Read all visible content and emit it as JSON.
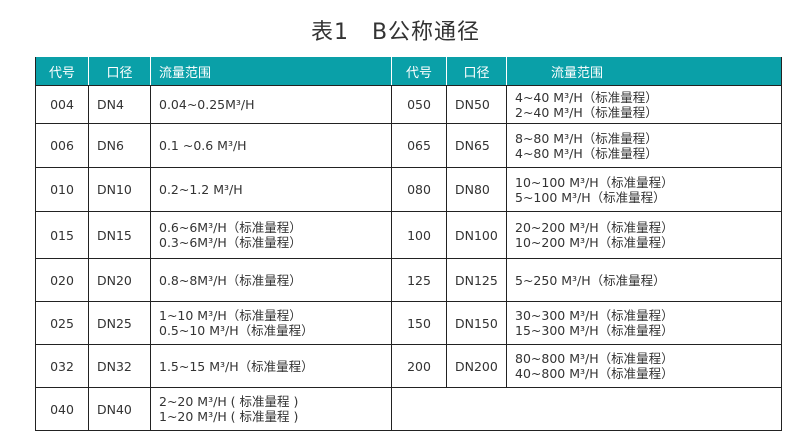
{
  "title": "表1　B公称通径",
  "header": {
    "code": "代号",
    "dn": "口径",
    "flow": "流量范围"
  },
  "left_rows": [
    {
      "code": "004",
      "dn": "DN4",
      "flow": [
        "0.04~0.25M³/H"
      ]
    },
    {
      "code": "006",
      "dn": "DN6",
      "flow": [
        "0.1 ~0.6 M³/H"
      ]
    },
    {
      "code": "010",
      "dn": "DN10",
      "flow": [
        "0.2~1.2 M³/H"
      ]
    },
    {
      "code": "015",
      "dn": "DN15",
      "flow": [
        "0.6~6M³/H（标准量程）",
        "0.3~6M³/H（标准量程）"
      ]
    },
    {
      "code": "020",
      "dn": "DN20",
      "flow": [
        "0.8~8M³/H（标准量程）"
      ]
    },
    {
      "code": "025",
      "dn": "DN25",
      "flow": [
        "1~10 M³/H（标准量程）",
        "0.5~10 M³/H（标准量程）"
      ]
    },
    {
      "code": "032",
      "dn": "DN32",
      "flow": [
        "1.5~15 M³/H（标准量程）"
      ]
    },
    {
      "code": "040",
      "dn": "DN40",
      "flow": [
        "2~20 M³/H ( 标准量程 )",
        "1~20 M³/H ( 标准量程 )"
      ]
    }
  ],
  "right_rows": [
    {
      "code": "050",
      "dn": "DN50",
      "flow": [
        "4~40 M³/H（标准量程）",
        "2~40 M³/H（标准量程）"
      ]
    },
    {
      "code": "065",
      "dn": "DN65",
      "flow": [
        "8~80 M³/H（标准量程）",
        "4~80 M³/H（标准量程）"
      ]
    },
    {
      "code": "080",
      "dn": "DN80",
      "flow": [
        "10~100 M³/H（标准量程）",
        " 5~100 M³/H（标准量程）"
      ]
    },
    {
      "code": "100",
      "dn": "DN100",
      "flow": [
        "20~200 M³/H（标准量程）",
        "10~200 M³/H（标准量程）"
      ]
    },
    {
      "code": "125",
      "dn": "DN125",
      "flow": [
        "5~250 M³/H（标准量程）"
      ]
    },
    {
      "code": "150",
      "dn": "DN150",
      "flow": [
        "30~300 M³/H（标准量程）",
        "15~300 M³/H（标准量程）"
      ]
    },
    {
      "code": "200",
      "dn": "DN200",
      "flow": [
        "80~800 M³/H（标准量程）",
        "40~800 M³/H（标准量程）"
      ]
    }
  ],
  "colors": {
    "header_bg": "#0aa0a8",
    "header_text": "#ffffff",
    "border": "#222222"
  }
}
